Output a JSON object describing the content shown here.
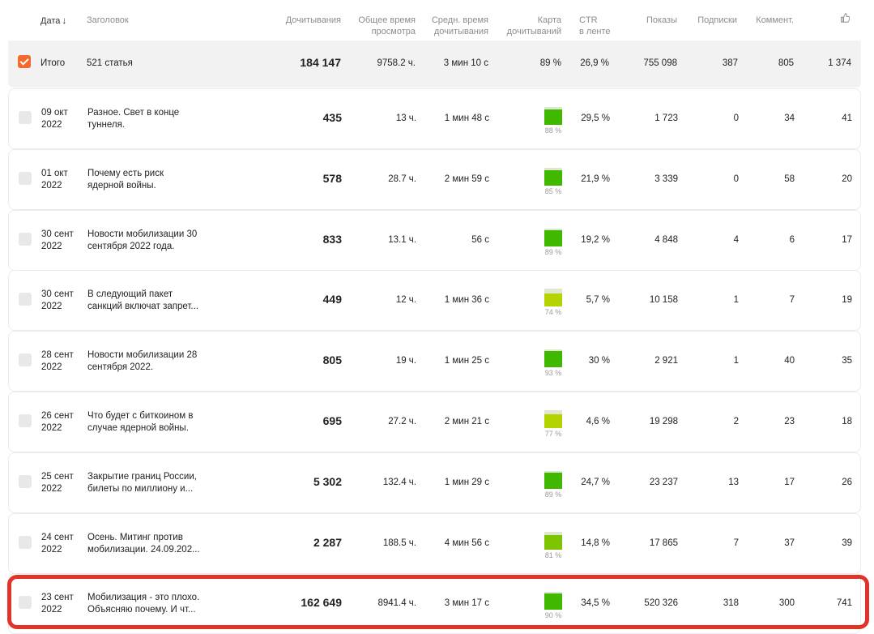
{
  "headers": {
    "date": "Дата",
    "title": "Заголовок",
    "reads": "Дочитывания",
    "total_time_1": "Общее время",
    "total_time_2": "просмотра",
    "avg_time_1": "Средн. время",
    "avg_time_2": "дочитывания",
    "map_1": "Карта",
    "map_2": "дочитываний",
    "ctr_1": "CTR",
    "ctr_2": "в ленте",
    "shows": "Показы",
    "subs": "Подписки",
    "comments": "Коммент.",
    "likes_icon": "thumbs-up-icon"
  },
  "totals": {
    "label": "Итого",
    "articles": "521 статья",
    "reads": "184 147",
    "total_time": "9758.2 ч.",
    "avg_time": "3 мин 10 с",
    "map": "89 %",
    "ctr": "26,9 %",
    "shows": "755 098",
    "subs": "387",
    "comments": "805",
    "likes": "1 374"
  },
  "rows": [
    {
      "date1": "09 окт",
      "date2": "2022",
      "title1": "Разное. Свет в конце",
      "title2": "туннеля.",
      "reads": "435",
      "total_time": "13 ч.",
      "avg_time": "1 мин 48 с",
      "map": 0.88,
      "map_label": "88 %",
      "ctr": "29,5 %",
      "shows": "1 723",
      "subs": "0",
      "comments": "34",
      "likes": "41"
    },
    {
      "date1": "01 окт",
      "date2": "2022",
      "title1": "Почему есть риск",
      "title2": "ядерной войны.",
      "reads": "578",
      "total_time": "28.7 ч.",
      "avg_time": "2 мин 59 с",
      "map": 0.85,
      "map_label": "85 %",
      "ctr": "21,9 %",
      "shows": "3 339",
      "subs": "0",
      "comments": "58",
      "likes": "20"
    },
    {
      "date1": "30 сент",
      "date2": "2022",
      "title1": "Новости мобилизации 30",
      "title2": "сентября 2022 года.",
      "reads": "833",
      "total_time": "13.1 ч.",
      "avg_time": "56 с",
      "map": 0.89,
      "map_label": "89 %",
      "ctr": "19,2 %",
      "shows": "4 848",
      "subs": "4",
      "comments": "6",
      "likes": "17"
    },
    {
      "date1": "30 сент",
      "date2": "2022",
      "title1": "В следующий пакет",
      "title2": "санкций включат запрет...",
      "reads": "449",
      "total_time": "12 ч.",
      "avg_time": "1 мин 36 с",
      "map": 0.74,
      "map_label": "74 %",
      "ctr": "5,7 %",
      "shows": "10 158",
      "subs": "1",
      "comments": "7",
      "likes": "19"
    },
    {
      "date1": "28 сент",
      "date2": "2022",
      "title1": "Новости мобилизации 28",
      "title2": "сентября 2022.",
      "reads": "805",
      "total_time": "19 ч.",
      "avg_time": "1 мин 25 с",
      "map": 0.93,
      "map_label": "93 %",
      "ctr": "30 %",
      "shows": "2 921",
      "subs": "1",
      "comments": "40",
      "likes": "35"
    },
    {
      "date1": "26 сент",
      "date2": "2022",
      "title1": "Что будет с биткоином в",
      "title2": "случае ядерной войны.",
      "reads": "695",
      "total_time": "27.2 ч.",
      "avg_time": "2 мин 21 с",
      "map": 0.77,
      "map_label": "77 %",
      "ctr": "4,6 %",
      "shows": "19 298",
      "subs": "2",
      "comments": "23",
      "likes": "18"
    },
    {
      "date1": "25 сент",
      "date2": "2022",
      "title1": "Закрытие границ России,",
      "title2": "билеты по миллиону и...",
      "reads": "5 302",
      "total_time": "132.4 ч.",
      "avg_time": "1 мин 29 с",
      "map": 0.89,
      "map_label": "89 %",
      "ctr": "24,7 %",
      "shows": "23 237",
      "subs": "13",
      "comments": "17",
      "likes": "26"
    },
    {
      "date1": "24 сент",
      "date2": "2022",
      "title1": "Осень. Митинг против",
      "title2": "мобилизации. 24.09.202...",
      "reads": "2 287",
      "total_time": "188.5 ч.",
      "avg_time": "4 мин 56 с",
      "map": 0.81,
      "map_label": "81 %",
      "ctr": "14,8 %",
      "shows": "17 865",
      "subs": "7",
      "comments": "37",
      "likes": "39"
    },
    {
      "date1": "23 сент",
      "date2": "2022",
      "title1": "Мобилизация - это плохо.",
      "title2": "Объясняю почему. И чт...",
      "reads": "162 649",
      "total_time": "8941.4 ч.",
      "avg_time": "3 мин 17 с",
      "map": 0.9,
      "map_label": "90 %",
      "ctr": "34,5 %",
      "shows": "520 326",
      "subs": "318",
      "comments": "300",
      "likes": "741"
    }
  ]
}
